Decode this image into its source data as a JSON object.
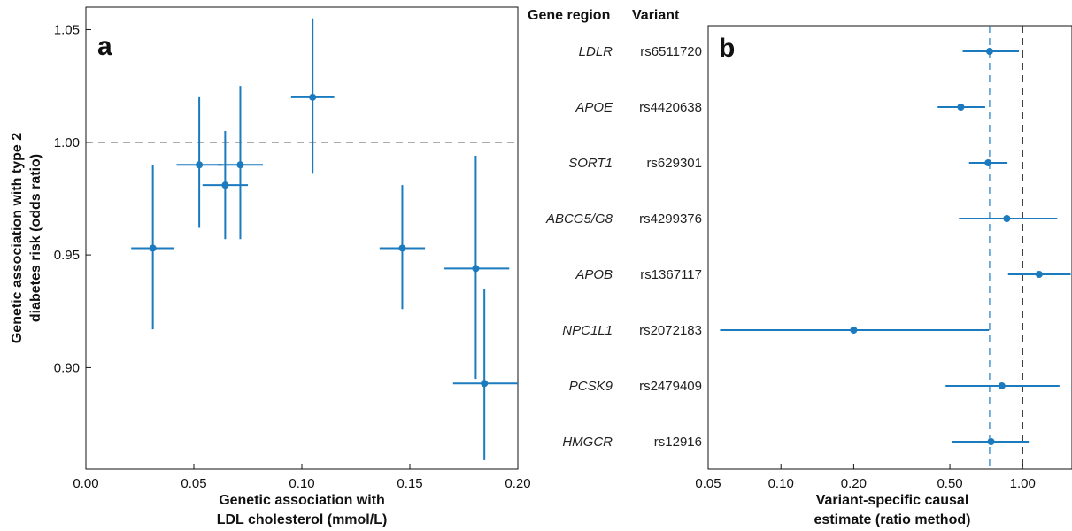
{
  "colors": {
    "series": "#1c7bbf",
    "axis": "#111111",
    "ref_line": "#222222",
    "ivw_line": "#1c7bbf"
  },
  "chart_data": [
    {
      "type": "scatter",
      "panel_label": "a",
      "xlabel_lines": [
        "Genetic association with",
        "LDL cholesterol (mmol/L)"
      ],
      "ylabel_lines": [
        "Genetic association with type 2",
        "diabetes risk (odds ratio)"
      ],
      "xlim": [
        0.0,
        0.2
      ],
      "ylim": [
        0.855,
        1.06
      ],
      "xticks": [
        0.0,
        0.05,
        0.1,
        0.15,
        0.2
      ],
      "xtick_labels": [
        "0.00",
        "0.05",
        "0.10",
        "0.15",
        "0.20"
      ],
      "yticks": [
        0.9,
        0.95,
        1.0,
        1.05
      ],
      "ytick_labels": [
        "0.90",
        "0.95",
        "1.00",
        "1.05"
      ],
      "reference_y": 1.0,
      "points": [
        {
          "x": 0.031,
          "y": 0.953,
          "x_low": 0.021,
          "x_high": 0.041,
          "y_low": 0.917,
          "y_high": 0.99
        },
        {
          "x": 0.0525,
          "y": 0.99,
          "x_low": 0.042,
          "x_high": 0.063,
          "y_low": 0.962,
          "y_high": 1.02
        },
        {
          "x": 0.0645,
          "y": 0.981,
          "x_low": 0.054,
          "x_high": 0.075,
          "y_low": 0.957,
          "y_high": 1.005
        },
        {
          "x": 0.0715,
          "y": 0.99,
          "x_low": 0.061,
          "x_high": 0.082,
          "y_low": 0.957,
          "y_high": 1.025
        },
        {
          "x": 0.105,
          "y": 1.02,
          "x_low": 0.095,
          "x_high": 0.115,
          "y_low": 0.986,
          "y_high": 1.055
        },
        {
          "x": 0.1465,
          "y": 0.953,
          "x_low": 0.136,
          "x_high": 0.157,
          "y_low": 0.926,
          "y_high": 0.981
        },
        {
          "x": 0.1805,
          "y": 0.944,
          "x_low": 0.166,
          "x_high": 0.196,
          "y_low": 0.895,
          "y_high": 0.994
        },
        {
          "x": 0.1845,
          "y": 0.893,
          "x_low": 0.17,
          "x_high": 0.2,
          "y_low": 0.859,
          "y_high": 0.935
        }
      ]
    },
    {
      "type": "scatter",
      "subtype": "forest",
      "panel_label": "b",
      "column_headers": {
        "gene": "Gene region",
        "variant": "Variant"
      },
      "xlabel_lines": [
        "Variant-specific causal",
        "estimate (ratio method)"
      ],
      "x_scale": "log",
      "xlim": [
        0.05,
        1.6
      ],
      "xticks": [
        0.05,
        0.1,
        0.2,
        0.5,
        1.0
      ],
      "xtick_labels": [
        "0.05",
        "0.10",
        "0.20",
        "0.50",
        "1.00"
      ],
      "reference_x": 1.0,
      "pooled_estimate_x": 0.73,
      "rows": [
        {
          "gene": "LDLR",
          "variant": "rs6511720",
          "est": 0.73,
          "low": 0.565,
          "high": 0.965
        },
        {
          "gene": "APOE",
          "variant": "rs4420638",
          "est": 0.555,
          "low": 0.445,
          "high": 0.7
        },
        {
          "gene": "SORT1",
          "variant": "rs629301",
          "est": 0.72,
          "low": 0.6,
          "high": 0.865
        },
        {
          "gene": "ABCG5/G8",
          "variant": "rs4299376",
          "est": 0.86,
          "low": 0.545,
          "high": 1.39
        },
        {
          "gene": "APOB",
          "variant": "rs1367117",
          "est": 1.17,
          "low": 0.87,
          "high": 1.58
        },
        {
          "gene": "NPC1L1",
          "variant": "rs2072183",
          "est": 0.2,
          "low": 0.056,
          "high": 0.725
        },
        {
          "gene": "PCSK9",
          "variant": "rs2479409",
          "est": 0.82,
          "low": 0.48,
          "high": 1.42
        },
        {
          "gene": "HMGCR",
          "variant": "rs12916",
          "est": 0.74,
          "low": 0.51,
          "high": 1.06
        }
      ]
    }
  ]
}
